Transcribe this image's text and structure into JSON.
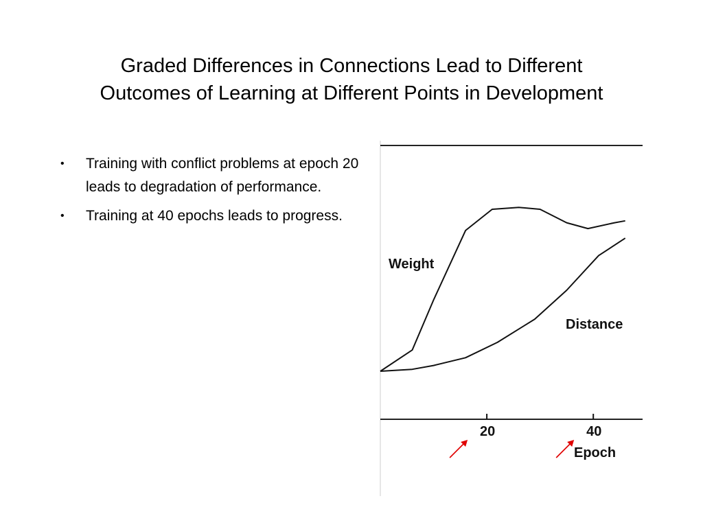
{
  "slide": {
    "title_lines": [
      "Graded Differences in Connections Lead to Different",
      "Outcomes of Learning at Different Points in Development"
    ],
    "bullets": [
      "Training with conflict problems at epoch 20 leads to degradation of performance.",
      "Training at 40 epochs leads to progress."
    ],
    "bullet_marker": "•"
  },
  "colors": {
    "ink": "#111111",
    "arrow": "#e00000"
  },
  "chart_data": {
    "type": "line",
    "xlabel": "Epoch",
    "ylabel": "",
    "title": "",
    "x_ticks": [
      {
        "value": 20,
        "label": "20"
      },
      {
        "value": 40,
        "label": "40"
      }
    ],
    "xlim": [
      0,
      49
    ],
    "ylim": [
      0,
      1
    ],
    "grid": false,
    "series": [
      {
        "name": "Weight",
        "x": [
          0,
          6,
          10,
          16,
          21,
          26,
          30,
          35,
          39,
          44,
          46
        ],
        "y": [
          0.0,
          0.11,
          0.37,
          0.73,
          0.84,
          0.85,
          0.84,
          0.77,
          0.74,
          0.77,
          0.78
        ]
      },
      {
        "name": "Distance",
        "x": [
          0,
          6,
          10,
          16,
          22,
          29,
          35,
          41,
          46
        ],
        "y": [
          0.0,
          0.01,
          0.03,
          0.07,
          0.15,
          0.27,
          0.42,
          0.6,
          0.69
        ]
      }
    ],
    "annotations": [
      {
        "type": "arrow",
        "target_x": 20,
        "color": "#e00000"
      },
      {
        "type": "arrow",
        "target_x": 40,
        "color": "#e00000"
      }
    ]
  }
}
